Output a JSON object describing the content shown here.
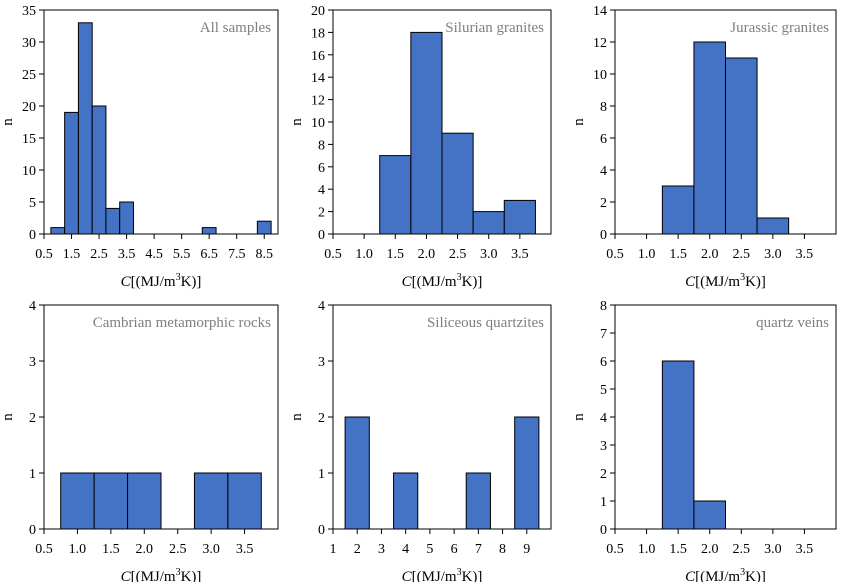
{
  "chart_data": [
    {
      "type": "bar",
      "title": "All samples",
      "ylabel": "n",
      "xlabel_italic": "C",
      "xlabel_rest": "[(MJ/m",
      "xlabel_sup": "3",
      "xlabel_end": "K)]",
      "xlim": [
        0.5,
        9.0
      ],
      "ylim": [
        0,
        35
      ],
      "yticks": [
        0,
        5,
        10,
        15,
        20,
        25,
        30,
        35
      ],
      "xticks": [
        {
          "value": 0.5,
          "label": "0.5"
        },
        {
          "value": 1.5,
          "label": "1.5"
        },
        {
          "value": 2.5,
          "label": "2.5"
        },
        {
          "value": 3.5,
          "label": "3.5"
        },
        {
          "value": 4.5,
          "label": "4.5"
        },
        {
          "value": 5.5,
          "label": "5.5"
        },
        {
          "value": 6.5,
          "label": "6.5"
        },
        {
          "value": 7.5,
          "label": "7.5"
        },
        {
          "value": 8.5,
          "label": "8.5"
        }
      ],
      "bins": [
        {
          "from": 0.75,
          "to": 1.25,
          "value": 1
        },
        {
          "from": 1.25,
          "to": 1.75,
          "value": 19
        },
        {
          "from": 1.75,
          "to": 2.25,
          "value": 33
        },
        {
          "from": 2.25,
          "to": 2.75,
          "value": 20
        },
        {
          "from": 2.75,
          "to": 3.25,
          "value": 4
        },
        {
          "from": 3.25,
          "to": 3.75,
          "value": 5
        },
        {
          "from": 6.25,
          "to": 6.75,
          "value": 1
        },
        {
          "from": 8.25,
          "to": 8.75,
          "value": 2
        }
      ]
    },
    {
      "type": "bar",
      "title": "Silurian granites",
      "ylabel": "n",
      "xlabel_italic": "C",
      "xlabel_rest": "[(MJ/m",
      "xlabel_sup": "3",
      "xlabel_end": "K)]",
      "xlim": [
        0.5,
        4.0
      ],
      "ylim": [
        0,
        20
      ],
      "yticks": [
        0,
        2,
        4,
        6,
        8,
        10,
        12,
        14,
        16,
        18,
        20
      ],
      "xticks": [
        {
          "value": 0.5,
          "label": "0.5"
        },
        {
          "value": 1.0,
          "label": "1.0"
        },
        {
          "value": 1.5,
          "label": "1.5"
        },
        {
          "value": 2.0,
          "label": "2.0"
        },
        {
          "value": 2.5,
          "label": "2.5"
        },
        {
          "value": 3.0,
          "label": "3.0"
        },
        {
          "value": 3.5,
          "label": "3.5"
        }
      ],
      "bins": [
        {
          "from": 1.25,
          "to": 1.75,
          "value": 7
        },
        {
          "from": 1.75,
          "to": 2.25,
          "value": 18
        },
        {
          "from": 2.25,
          "to": 2.75,
          "value": 9
        },
        {
          "from": 2.75,
          "to": 3.25,
          "value": 2
        },
        {
          "from": 3.25,
          "to": 3.75,
          "value": 3
        }
      ]
    },
    {
      "type": "bar",
      "title": "Jurassic granites",
      "ylabel": "n",
      "xlabel_italic": "C",
      "xlabel_rest": "[(MJ/m",
      "xlabel_sup": "3",
      "xlabel_end": "K)]",
      "xlim": [
        0.5,
        4.0
      ],
      "ylim": [
        0,
        14
      ],
      "yticks": [
        0,
        2,
        4,
        6,
        8,
        10,
        12,
        14
      ],
      "xticks": [
        {
          "value": 0.5,
          "label": "0.5"
        },
        {
          "value": 1.0,
          "label": "1.0"
        },
        {
          "value": 1.5,
          "label": "1.5"
        },
        {
          "value": 2.0,
          "label": "2.0"
        },
        {
          "value": 2.5,
          "label": "2.5"
        },
        {
          "value": 3.0,
          "label": "3.0"
        },
        {
          "value": 3.5,
          "label": "3.5"
        }
      ],
      "bins": [
        {
          "from": 1.25,
          "to": 1.75,
          "value": 3
        },
        {
          "from": 1.75,
          "to": 2.25,
          "value": 12
        },
        {
          "from": 2.25,
          "to": 2.75,
          "value": 11
        },
        {
          "from": 2.75,
          "to": 3.25,
          "value": 1
        }
      ]
    },
    {
      "type": "bar",
      "title": "Cambrian metamorphic rocks",
      "ylabel": "n",
      "xlabel_italic": "C",
      "xlabel_rest": "[(MJ/m",
      "xlabel_sup": "3",
      "xlabel_end": "K)]",
      "xlim": [
        0.5,
        4.0
      ],
      "ylim": [
        0,
        4
      ],
      "yticks": [
        0,
        1,
        2,
        3,
        4
      ],
      "xticks": [
        {
          "value": 0.5,
          "label": "0.5"
        },
        {
          "value": 1.0,
          "label": "1.0"
        },
        {
          "value": 1.5,
          "label": "1.5"
        },
        {
          "value": 2.0,
          "label": "2.0"
        },
        {
          "value": 2.5,
          "label": "2.5"
        },
        {
          "value": 3.0,
          "label": "3.0"
        },
        {
          "value": 3.5,
          "label": "3.5"
        }
      ],
      "bins": [
        {
          "from": 0.75,
          "to": 1.25,
          "value": 1
        },
        {
          "from": 1.25,
          "to": 1.75,
          "value": 1
        },
        {
          "from": 1.75,
          "to": 2.25,
          "value": 1
        },
        {
          "from": 2.75,
          "to": 3.25,
          "value": 1
        },
        {
          "from": 3.25,
          "to": 3.75,
          "value": 1
        }
      ]
    },
    {
      "type": "bar",
      "title": "Siliceous quartzites",
      "ylabel": "n",
      "xlabel_italic": "C",
      "xlabel_rest": "[(MJ/m",
      "xlabel_sup": "3",
      "xlabel_end": "K)]",
      "xlim": [
        1,
        10
      ],
      "ylim": [
        0,
        4
      ],
      "yticks": [
        0,
        1,
        2,
        3,
        4
      ],
      "xticks": [
        {
          "value": 1,
          "label": "1"
        },
        {
          "value": 2,
          "label": "2"
        },
        {
          "value": 3,
          "label": "3"
        },
        {
          "value": 4,
          "label": "4"
        },
        {
          "value": 5,
          "label": "5"
        },
        {
          "value": 6,
          "label": "6"
        },
        {
          "value": 7,
          "label": "7"
        },
        {
          "value": 8,
          "label": "8"
        },
        {
          "value": 9,
          "label": "9"
        }
      ],
      "bins": [
        {
          "from": 1.5,
          "to": 2.5,
          "value": 2
        },
        {
          "from": 3.5,
          "to": 4.5,
          "value": 1
        },
        {
          "from": 6.5,
          "to": 7.5,
          "value": 1
        },
        {
          "from": 8.5,
          "to": 9.5,
          "value": 2
        }
      ]
    },
    {
      "type": "bar",
      "title": "quartz veins",
      "ylabel": "n",
      "xlabel_italic": "C",
      "xlabel_rest": "[(MJ/m",
      "xlabel_sup": "3",
      "xlabel_end": "K)]",
      "xlim": [
        0.5,
        4.0
      ],
      "ylim": [
        0,
        8
      ],
      "yticks": [
        0,
        1,
        2,
        3,
        4,
        5,
        6,
        7,
        8
      ],
      "xticks": [
        {
          "value": 0.5,
          "label": "0.5"
        },
        {
          "value": 1.0,
          "label": "1.0"
        },
        {
          "value": 1.5,
          "label": "1.5"
        },
        {
          "value": 2.0,
          "label": "2.0"
        },
        {
          "value": 2.5,
          "label": "2.5"
        },
        {
          "value": 3.0,
          "label": "3.0"
        },
        {
          "value": 3.5,
          "label": "3.5"
        }
      ],
      "bins": [
        {
          "from": 1.25,
          "to": 1.75,
          "value": 6
        },
        {
          "from": 1.75,
          "to": 2.25,
          "value": 1
        }
      ]
    }
  ],
  "colors": {
    "bar_fill": "#4472c4",
    "bar_stroke": "#000000",
    "axis": "#000000",
    "title": "#7f7f7f"
  }
}
